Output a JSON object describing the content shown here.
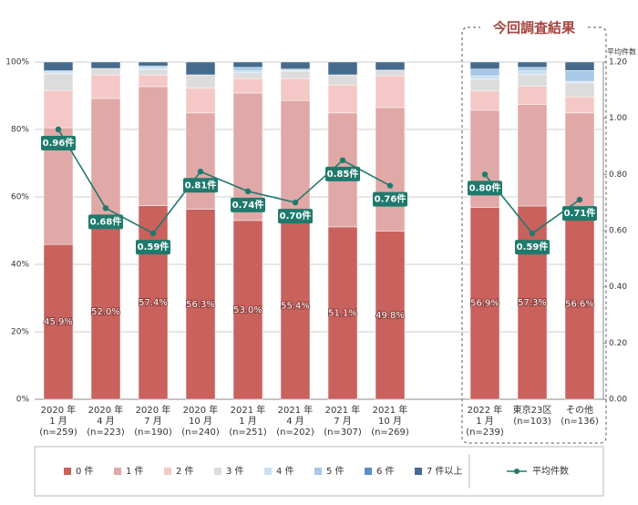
{
  "chart_data": {
    "type": "stacked-bar-line",
    "annotation": "今回調査結果",
    "y2_label": "平均件数",
    "categories": [
      [
        "2020 年",
        "1 月",
        "(n=259)"
      ],
      [
        "2020 年",
        "4 月",
        "(n=223)"
      ],
      [
        "2020 年",
        "7 月",
        "(n=190)"
      ],
      [
        "2020 年",
        "10 月",
        "(n=240)"
      ],
      [
        "2021 年",
        "1 月",
        "(n=251)"
      ],
      [
        "2021 年",
        "4 月",
        "(n=202)"
      ],
      [
        "2021 年",
        "7 月",
        "(n=307)"
      ],
      [
        "2021 年",
        "10 月",
        "(n=269)"
      ],
      null,
      [
        "2022 年",
        "1 月",
        "(n=239)"
      ],
      [
        "東京23区",
        "(n=103)"
      ],
      [
        "その他",
        "(n=136)"
      ]
    ],
    "series": [
      {
        "name": "0 件",
        "color": "#c9615d",
        "values": [
          45.9,
          52.0,
          57.4,
          56.3,
          53.0,
          55.4,
          51.1,
          49.8,
          null,
          56.9,
          57.3,
          56.6
        ],
        "value_labels": [
          "45.9%",
          "52.0%",
          "57.4%",
          "56.3%",
          "53.0%",
          "55.4%",
          "51.1%",
          "49.8%",
          null,
          "56.9%",
          "57.3%",
          "56.6%"
        ]
      },
      {
        "name": "1 件",
        "color": "#e0a8a6",
        "values": [
          34.6,
          37.2,
          35.3,
          28.6,
          37.8,
          33.2,
          33.8,
          36.7,
          null,
          28.8,
          30.1,
          28.3
        ]
      },
      {
        "name": "2 件",
        "color": "#f3c8c6",
        "values": [
          11.1,
          7.0,
          3.5,
          7.3,
          4.3,
          6.5,
          8.3,
          9.4,
          null,
          5.7,
          5.4,
          4.8
        ]
      },
      {
        "name": "3 件",
        "color": "#dcdcdc",
        "values": [
          4.9,
          1.9,
          1.6,
          4.0,
          1.7,
          2.2,
          3.0,
          1.7,
          null,
          3.5,
          3.6,
          4.1
        ]
      },
      {
        "name": "4 件",
        "color": "#c9e0f3",
        "values": [
          0.3,
          0,
          0.5,
          0,
          0.6,
          0.3,
          0,
          0,
          null,
          1.0,
          1.0,
          0.5
        ]
      },
      {
        "name": "5 件",
        "color": "#a7c8e6",
        "values": [
          0.4,
          0,
          0.5,
          0,
          1.0,
          0.3,
          0,
          0,
          null,
          2.0,
          1.0,
          3.2
        ]
      },
      {
        "name": "6 件",
        "color": "#5b8fc4",
        "values": [
          0.3,
          0,
          0,
          0,
          0,
          0,
          0,
          0,
          null,
          0,
          0,
          0
        ]
      },
      {
        "name": "7 件以上",
        "color": "#466b8c",
        "values": [
          2.5,
          1.9,
          1.2,
          3.8,
          1.6,
          2.1,
          3.8,
          2.4,
          null,
          2.1,
          1.6,
          2.5
        ]
      },
      {
        "name": "平均件数",
        "color": "#1f7a6d",
        "axis": "y2",
        "values": [
          0.96,
          0.68,
          0.59,
          0.81,
          0.74,
          0.7,
          0.85,
          0.76,
          null,
          0.8,
          0.59,
          0.71
        ],
        "value_labels": [
          "0.96件",
          "0.68件",
          "0.59件",
          "0.81件",
          "0.74件",
          "0.70件",
          "0.85件",
          "0.76件",
          null,
          "0.80件",
          "0.59件",
          "0.71件"
        ]
      }
    ],
    "ylim": [
      0,
      100
    ],
    "yticks": [
      {
        "value": 0,
        "label": "0%"
      },
      {
        "value": 20,
        "label": "20%"
      },
      {
        "value": 40,
        "label": "40%"
      },
      {
        "value": 60,
        "label": "60%"
      },
      {
        "value": 80,
        "label": "80%"
      },
      {
        "value": 100,
        "label": "100%"
      }
    ],
    "y2lim": [
      0,
      1.2
    ],
    "y2ticks": [
      {
        "value": 0,
        "label": "0.00"
      },
      {
        "value": 0.2,
        "label": "0.20"
      },
      {
        "value": 0.4,
        "label": "0.40"
      },
      {
        "value": 0.6,
        "label": "0.60"
      },
      {
        "value": 0.8,
        "label": "0.80"
      },
      {
        "value": 1.0,
        "label": "1.00"
      },
      {
        "value": 1.2,
        "label": "1.20"
      }
    ],
    "grid": true
  }
}
